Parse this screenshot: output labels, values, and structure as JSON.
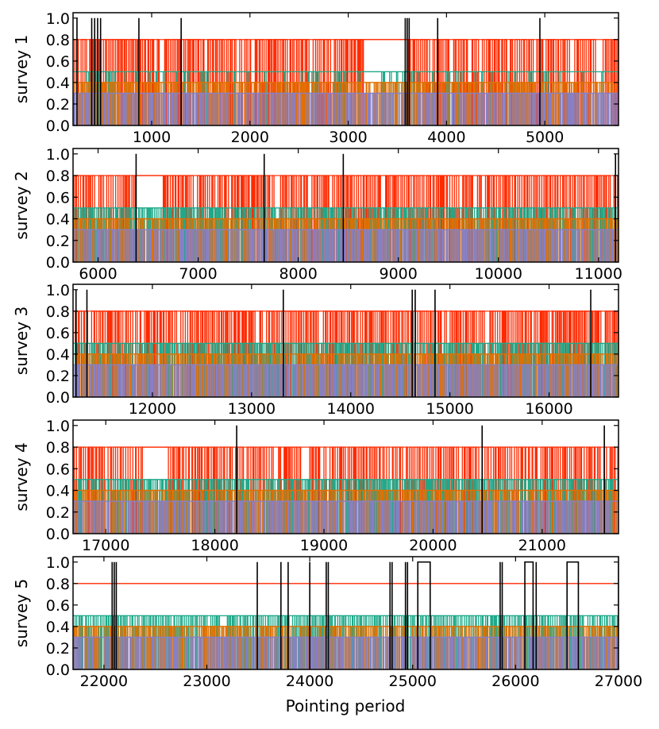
{
  "chart_data": [
    {
      "type": "line",
      "ylabel": "survey 1",
      "xlim": [
        200,
        5750
      ],
      "ylim": [
        0,
        1.05
      ],
      "xticks": [
        1000,
        2000,
        3000,
        4000,
        5000
      ],
      "xticklabels": [
        "1000",
        "2000",
        "3000",
        "4000",
        "5000"
      ],
      "yticks": [
        0.0,
        0.2,
        0.4,
        0.6,
        0.8,
        1.0
      ],
      "yticklabels": [
        "0.0",
        "0.2",
        "0.4",
        "0.6",
        "0.8",
        "1.0"
      ],
      "black_spikes_x": [
        240,
        390,
        420,
        450,
        480,
        870,
        1300,
        3580,
        3600,
        3620,
        3910,
        4950
      ],
      "red_gaps": [
        [
          3150,
          3600
        ]
      ],
      "series": [
        {
          "name": "black",
          "color": "#000000",
          "level": 1.0
        },
        {
          "name": "red",
          "color": "#ff2a00",
          "level": 0.8
        },
        {
          "name": "teal",
          "color": "#1fa98a",
          "level": 0.5
        },
        {
          "name": "orange",
          "color": "#e07000",
          "level": 0.4
        },
        {
          "name": "purple",
          "color": "#8880c4",
          "level": 0.3
        }
      ]
    },
    {
      "type": "line",
      "ylabel": "survey 2",
      "xlim": [
        5750,
        11200
      ],
      "ylim": [
        0,
        1.05
      ],
      "xticks": [
        6000,
        7000,
        8000,
        9000,
        10000,
        11000
      ],
      "xticklabels": [
        "6000",
        "7000",
        "8000",
        "9000",
        "10000",
        "11000"
      ],
      "yticks": [
        0.0,
        0.2,
        0.4,
        0.6,
        0.8,
        1.0
      ],
      "yticklabels": [
        "0.0",
        "0.2",
        "0.4",
        "0.6",
        "0.8",
        "1.0"
      ],
      "black_spikes_x": [
        6380,
        7660,
        8450,
        11170
      ],
      "red_gaps": [
        [
          6380,
          6650
        ]
      ],
      "series": [
        {
          "name": "black",
          "color": "#000000",
          "level": 1.0
        },
        {
          "name": "red",
          "color": "#ff2a00",
          "level": 0.8
        },
        {
          "name": "teal",
          "color": "#1fa98a",
          "level": 0.5
        },
        {
          "name": "orange",
          "color": "#e07000",
          "level": 0.4
        },
        {
          "name": "purple",
          "color": "#8880c4",
          "level": 0.3
        }
      ]
    },
    {
      "type": "line",
      "ylabel": "survey 3",
      "xlim": [
        11200,
        16700
      ],
      "ylim": [
        0,
        1.05
      ],
      "xticks": [
        12000,
        13000,
        14000,
        15000,
        16000
      ],
      "xticklabels": [
        "12000",
        "13000",
        "14000",
        "15000",
        "16000"
      ],
      "yticks": [
        0.0,
        0.2,
        0.4,
        0.6,
        0.8,
        1.0
      ],
      "yticklabels": [
        "0.0",
        "0.2",
        "0.4",
        "0.6",
        "0.8",
        "1.0"
      ],
      "black_spikes_x": [
        11230,
        11340,
        13320,
        14620,
        14650,
        14850,
        16420
      ],
      "red_gaps": [],
      "series": [
        {
          "name": "black",
          "color": "#000000",
          "level": 1.0
        },
        {
          "name": "red",
          "color": "#ff2a00",
          "level": 0.8
        },
        {
          "name": "teal",
          "color": "#1fa98a",
          "level": 0.5
        },
        {
          "name": "orange",
          "color": "#e07000",
          "level": 0.4
        },
        {
          "name": "purple",
          "color": "#8880c4",
          "level": 0.3
        }
      ]
    },
    {
      "type": "line",
      "ylabel": "survey 4",
      "xlim": [
        16700,
        21700
      ],
      "ylim": [
        0,
        1.05
      ],
      "xticks": [
        17000,
        18000,
        19000,
        20000,
        21000
      ],
      "xticklabels": [
        "17000",
        "18000",
        "19000",
        "20000",
        "21000"
      ],
      "yticks": [
        0.0,
        0.2,
        0.4,
        0.6,
        0.8,
        1.0
      ],
      "yticklabels": [
        "0.0",
        "0.2",
        "0.4",
        "0.6",
        "0.8",
        "1.0"
      ],
      "black_spikes_x": [
        18200,
        20450,
        21570
      ],
      "red_gaps": [
        [
          17330,
          17570
        ]
      ],
      "series": [
        {
          "name": "black",
          "color": "#000000",
          "level": 1.0
        },
        {
          "name": "red",
          "color": "#ff2a00",
          "level": 0.8
        },
        {
          "name": "teal",
          "color": "#1fa98a",
          "level": 0.5
        },
        {
          "name": "orange",
          "color": "#e07000",
          "level": 0.4
        },
        {
          "name": "purple",
          "color": "#8880c4",
          "level": 0.3
        }
      ]
    },
    {
      "type": "line",
      "ylabel": "survey 5",
      "xlabel": "Pointing period",
      "xlim": [
        21700,
        27000
      ],
      "ylim": [
        0,
        1.05
      ],
      "xticks": [
        22000,
        23000,
        24000,
        25000,
        26000,
        27000
      ],
      "xticklabels": [
        "22000",
        "23000",
        "24000",
        "25000",
        "26000",
        "27000"
      ],
      "yticks": [
        0.0,
        0.2,
        0.4,
        0.6,
        0.8,
        1.0
      ],
      "yticklabels": [
        "0.0",
        "0.2",
        "0.4",
        "0.6",
        "0.8",
        "1.0"
      ],
      "black_spikes_x": [
        22080,
        22100,
        22120,
        23490,
        23720,
        23790,
        24000,
        24160,
        24180,
        24780,
        24800,
        24930,
        24950,
        25850,
        25870,
        26200,
        27000
      ],
      "black_boxes": [
        [
          25050,
          25170
        ],
        [
          26090,
          26170
        ],
        [
          26500,
          26610
        ]
      ],
      "red_gaps": [],
      "series": [
        {
          "name": "black",
          "color": "#000000",
          "level": 1.0
        },
        {
          "name": "red",
          "color": "#ff2a00",
          "level": 0.8
        },
        {
          "name": "teal",
          "color": "#1fa98a",
          "level": 0.5
        },
        {
          "name": "orange",
          "color": "#e07000",
          "level": 0.4
        },
        {
          "name": "purple",
          "color": "#8880c4",
          "level": 0.3
        }
      ]
    }
  ]
}
